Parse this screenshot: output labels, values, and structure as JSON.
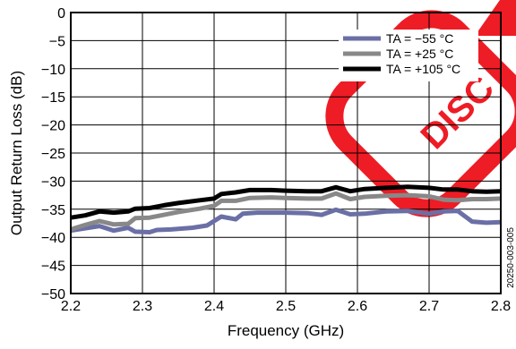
{
  "chart_data": {
    "type": "line",
    "title": "",
    "xlabel": "Frequency (GHz)",
    "ylabel": "Output Return Loss (dB)",
    "xlim": [
      2.2,
      2.8
    ],
    "ylim": [
      -50,
      0
    ],
    "x_ticks": [
      2.2,
      2.3,
      2.4,
      2.5,
      2.6,
      2.7,
      2.8
    ],
    "y_ticks": [
      0,
      -5,
      -10,
      -15,
      -20,
      -25,
      -30,
      -35,
      -40,
      -45,
      -50
    ],
    "x_tick_labels": [
      "2.2",
      "2.3",
      "2.4",
      "2.5",
      "2.6",
      "2.7",
      "2.8"
    ],
    "y_tick_labels": [
      "0",
      "−5",
      "−10",
      "−15",
      "−20",
      "−25",
      "−30",
      "−35",
      "−40",
      "−45",
      "−50"
    ],
    "grid": true,
    "legend_position": "top-right",
    "series": [
      {
        "name": "TA = −55 °C",
        "color": "#6a6fa6",
        "x": [
          2.2,
          2.22,
          2.24,
          2.26,
          2.28,
          2.29,
          2.31,
          2.32,
          2.34,
          2.37,
          2.39,
          2.41,
          2.43,
          2.44,
          2.46,
          2.5,
          2.53,
          2.55,
          2.57,
          2.59,
          2.61,
          2.64,
          2.67,
          2.7,
          2.72,
          2.74,
          2.76,
          2.78,
          2.8
        ],
        "y": [
          -38.8,
          -38.4,
          -38.0,
          -38.8,
          -38.3,
          -39.0,
          -39.1,
          -38.7,
          -38.6,
          -38.3,
          -37.9,
          -36.3,
          -36.8,
          -35.8,
          -35.6,
          -35.6,
          -35.7,
          -36.0,
          -35.1,
          -35.9,
          -35.8,
          -35.4,
          -35.3,
          -35.8,
          -35.4,
          -35.3,
          -37.2,
          -37.4,
          -37.3
        ]
      },
      {
        "name": "TA = +25 °C",
        "color": "#888888",
        "x": [
          2.2,
          2.22,
          2.24,
          2.26,
          2.28,
          2.29,
          2.31,
          2.33,
          2.35,
          2.38,
          2.4,
          2.41,
          2.43,
          2.45,
          2.48,
          2.5,
          2.53,
          2.55,
          2.57,
          2.59,
          2.61,
          2.64,
          2.67,
          2.7,
          2.72,
          2.74,
          2.76,
          2.78,
          2.8
        ],
        "y": [
          -38.6,
          -37.8,
          -37.1,
          -37.7,
          -37.6,
          -36.6,
          -36.5,
          -36.0,
          -35.5,
          -34.9,
          -34.4,
          -33.5,
          -33.5,
          -33.0,
          -32.9,
          -33.0,
          -33.1,
          -33.1,
          -32.2,
          -33.2,
          -32.8,
          -32.6,
          -32.5,
          -32.7,
          -33.3,
          -33.4,
          -33.2,
          -33.2,
          -33.1
        ]
      },
      {
        "name": "TA = +105 °C",
        "color": "#000000",
        "x": [
          2.2,
          2.22,
          2.24,
          2.26,
          2.28,
          2.29,
          2.31,
          2.33,
          2.35,
          2.38,
          2.4,
          2.41,
          2.43,
          2.45,
          2.48,
          2.5,
          2.53,
          2.55,
          2.57,
          2.59,
          2.61,
          2.64,
          2.67,
          2.7,
          2.72,
          2.74,
          2.76,
          2.78,
          2.8
        ],
        "y": [
          -36.5,
          -36.1,
          -35.4,
          -35.6,
          -35.4,
          -34.9,
          -34.8,
          -34.3,
          -33.9,
          -33.4,
          -33.1,
          -32.3,
          -32.0,
          -31.6,
          -31.6,
          -31.7,
          -31.8,
          -31.8,
          -31.1,
          -31.8,
          -31.4,
          -31.2,
          -31.0,
          -31.2,
          -31.5,
          -31.5,
          -31.8,
          -31.9,
          -31.8
        ]
      }
    ],
    "side_label": "20250-003-005"
  }
}
